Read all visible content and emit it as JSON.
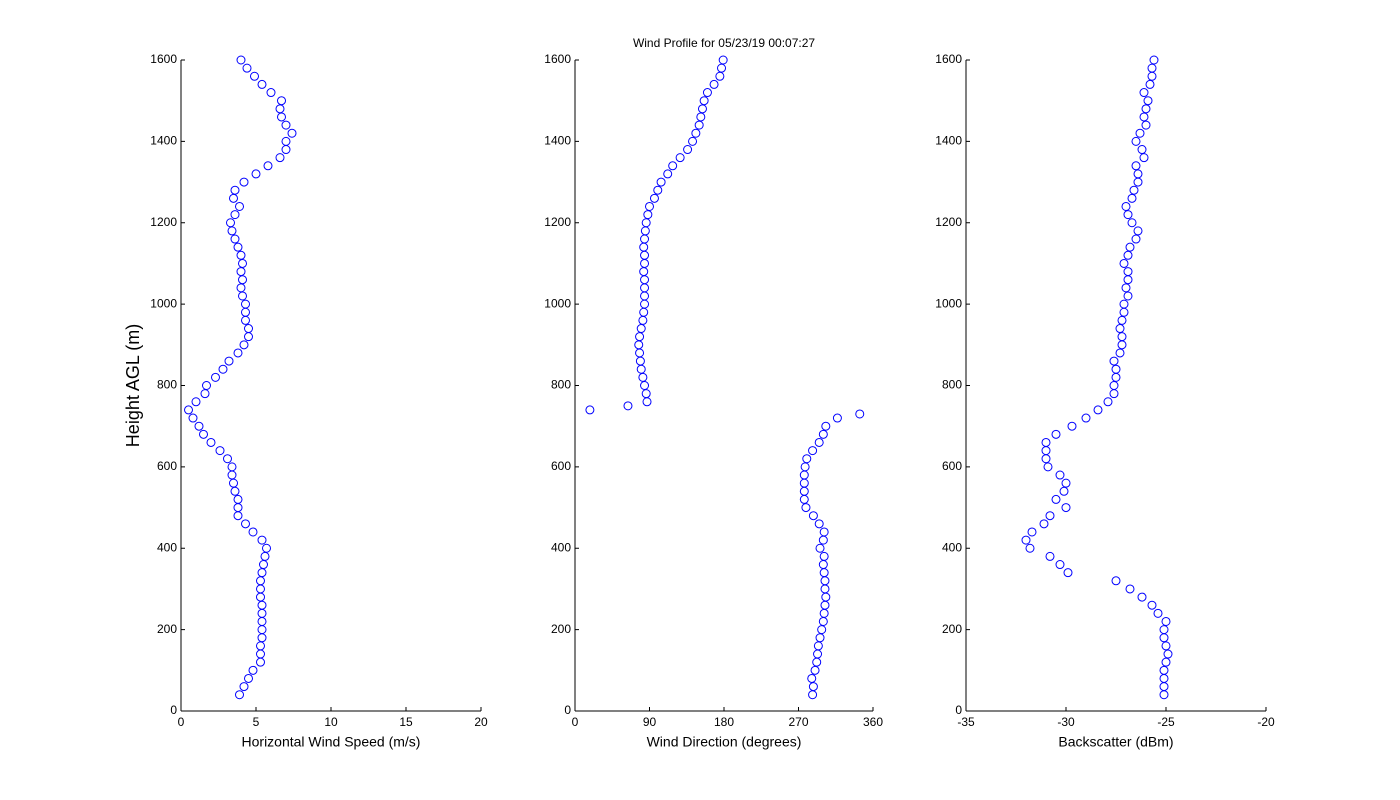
{
  "chart_data": [
    {
      "type": "scatter",
      "xlabel": "Horizontal Wind Speed (m/s)",
      "ylabel": "Height AGL (m)",
      "color": "#0000ff",
      "xlim": [
        0,
        20
      ],
      "xticks": [
        0,
        5,
        10,
        15,
        20
      ],
      "ylim": [
        0,
        1600
      ],
      "yticks": [
        0,
        200,
        400,
        600,
        800,
        1000,
        1200,
        1400,
        1600
      ],
      "x": [
        3.9,
        4.2,
        4.5,
        4.8,
        5.3,
        5.3,
        5.3,
        5.4,
        5.4,
        5.4,
        5.4,
        5.4,
        5.3,
        5.3,
        5.3,
        5.4,
        5.5,
        5.6,
        5.7,
        5.4,
        4.8,
        4.3,
        3.8,
        3.8,
        3.8,
        3.6,
        3.5,
        3.4,
        3.4,
        3.1,
        2.6,
        2.0,
        1.5,
        1.2,
        0.8,
        0.5,
        1.0,
        1.6,
        1.7,
        2.3,
        2.8,
        3.2,
        3.8,
        4.2,
        4.5,
        4.5,
        4.3,
        4.3,
        4.3,
        4.1,
        4.0,
        4.1,
        4.0,
        4.1,
        4.0,
        3.8,
        3.6,
        3.4,
        3.3,
        3.6,
        3.9,
        3.5,
        3.6,
        4.2,
        5.0,
        5.8,
        6.6,
        7.0,
        7.0,
        7.4,
        7.0,
        6.7,
        6.6,
        6.7,
        6.0,
        5.4,
        4.9,
        4.4,
        4.0
      ],
      "y": [
        40,
        60,
        80,
        100,
        120,
        140,
        160,
        180,
        200,
        220,
        240,
        260,
        280,
        300,
        320,
        340,
        360,
        380,
        400,
        420,
        440,
        460,
        480,
        500,
        520,
        540,
        560,
        580,
        600,
        620,
        640,
        660,
        680,
        700,
        720,
        740,
        760,
        780,
        800,
        820,
        840,
        860,
        880,
        900,
        920,
        940,
        960,
        980,
        1000,
        1020,
        1040,
        1060,
        1080,
        1100,
        1120,
        1140,
        1160,
        1180,
        1200,
        1220,
        1240,
        1260,
        1280,
        1300,
        1320,
        1340,
        1360,
        1380,
        1400,
        1420,
        1440,
        1460,
        1480,
        1500,
        1520,
        1540,
        1560,
        1580,
        1600
      ]
    },
    {
      "type": "scatter",
      "title": "Wind Profile for  05/23/19 00:07:27",
      "xlabel": "Wind Direction (degrees)",
      "color": "#0000ff",
      "xlim": [
        0,
        360
      ],
      "xticks": [
        0,
        90,
        180,
        270,
        360
      ],
      "ylim": [
        0,
        1600
      ],
      "yticks": [
        0,
        200,
        400,
        600,
        800,
        1000,
        1200,
        1400,
        1600
      ],
      "x": [
        287,
        288,
        286,
        290,
        292,
        293,
        294,
        296,
        298,
        300,
        301,
        302,
        303,
        302,
        302,
        301,
        300,
        301,
        296,
        300,
        301,
        295,
        288,
        279,
        277,
        277,
        277,
        277,
        278,
        280,
        287,
        295,
        300,
        303,
        317,
        344,
        18,
        64,
        87,
        86,
        84,
        82,
        80,
        79,
        78,
        77,
        78,
        80,
        82,
        83,
        84,
        84,
        84,
        84,
        83,
        84,
        84,
        83,
        84,
        85,
        86,
        88,
        90,
        96,
        100,
        104,
        112,
        118,
        127,
        136,
        142,
        146,
        150,
        152,
        154,
        156,
        160,
        168,
        175,
        177,
        179
      ],
      "y": [
        40,
        60,
        80,
        100,
        120,
        140,
        160,
        180,
        200,
        220,
        240,
        260,
        280,
        300,
        320,
        340,
        360,
        380,
        400,
        420,
        440,
        460,
        480,
        500,
        520,
        540,
        560,
        580,
        600,
        620,
        640,
        660,
        680,
        700,
        720,
        730,
        740,
        750,
        760,
        780,
        800,
        820,
        840,
        860,
        880,
        900,
        920,
        940,
        960,
        980,
        1000,
        1020,
        1040,
        1060,
        1080,
        1100,
        1120,
        1140,
        1160,
        1180,
        1200,
        1220,
        1240,
        1260,
        1280,
        1300,
        1320,
        1340,
        1360,
        1380,
        1400,
        1420,
        1440,
        1460,
        1480,
        1500,
        1520,
        1540,
        1560,
        1580,
        1600
      ]
    },
    {
      "type": "scatter",
      "xlabel": "Backscatter (dBm)",
      "color": "#0000ff",
      "xlim": [
        -35,
        -20
      ],
      "xticks": [
        -35,
        -30,
        -25,
        -20
      ],
      "ylim": [
        0,
        1600
      ],
      "yticks": [
        0,
        200,
        400,
        600,
        800,
        1000,
        1200,
        1400,
        1600
      ],
      "x": [
        -25.1,
        -25.1,
        -25.1,
        -25.1,
        -25.0,
        -24.9,
        -25.0,
        -25.1,
        -25.1,
        -25.0,
        -25.4,
        -25.7,
        -26.2,
        -26.8,
        -27.5,
        -29.9,
        -30.3,
        -30.8,
        -31.8,
        -32.0,
        -31.7,
        -31.1,
        -30.8,
        -30.0,
        -30.5,
        -30.1,
        -30.0,
        -30.3,
        -30.9,
        -31.0,
        -31.0,
        -31.0,
        -30.5,
        -29.7,
        -29.0,
        -28.4,
        -27.9,
        -27.6,
        -27.6,
        -27.5,
        -27.5,
        -27.6,
        -27.3,
        -27.2,
        -27.2,
        -27.3,
        -27.2,
        -27.1,
        -27.1,
        -26.9,
        -27.0,
        -26.9,
        -26.9,
        -27.1,
        -26.9,
        -26.8,
        -26.5,
        -26.4,
        -26.7,
        -26.9,
        -27.0,
        -26.7,
        -26.6,
        -26.4,
        -26.4,
        -26.5,
        -26.1,
        -26.2,
        -26.5,
        -26.3,
        -26.0,
        -26.1,
        -26.0,
        -25.9,
        -26.1,
        -25.8,
        -25.7,
        -25.7,
        -25.6
      ],
      "y": [
        40,
        60,
        80,
        100,
        120,
        140,
        160,
        180,
        200,
        220,
        240,
        260,
        280,
        300,
        320,
        340,
        360,
        380,
        400,
        420,
        440,
        460,
        480,
        500,
        520,
        540,
        560,
        580,
        600,
        620,
        640,
        660,
        680,
        700,
        720,
        740,
        760,
        780,
        800,
        820,
        840,
        860,
        880,
        900,
        920,
        940,
        960,
        980,
        1000,
        1020,
        1040,
        1060,
        1080,
        1100,
        1120,
        1140,
        1160,
        1180,
        1200,
        1220,
        1240,
        1260,
        1280,
        1300,
        1320,
        1340,
        1360,
        1380,
        1400,
        1420,
        1440,
        1460,
        1480,
        1500,
        1520,
        1540,
        1560,
        1580,
        1600
      ]
    }
  ]
}
